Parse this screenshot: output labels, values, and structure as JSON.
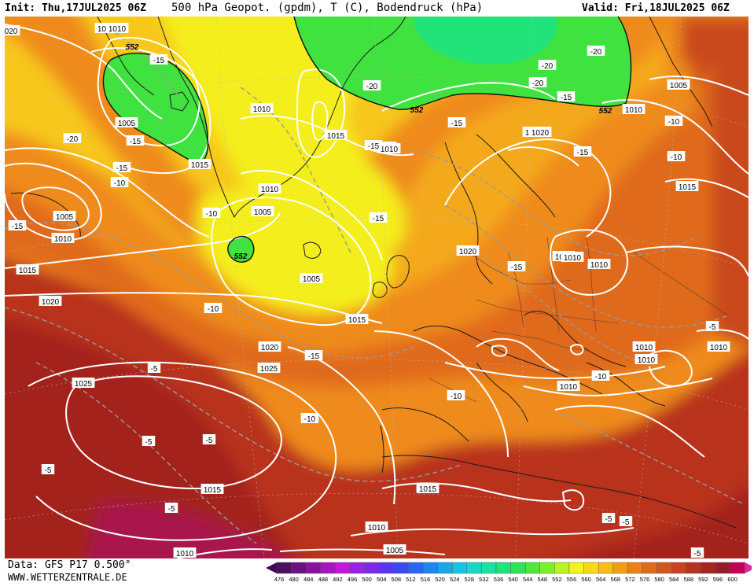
{
  "header": {
    "init": "Init: Thu,17JUL2025 06Z",
    "title": "500 hPa Geopot. (gpdm), T (C), Bodendruck (hPa)",
    "valid": "Valid: Fri,18JUL2025 06Z"
  },
  "footer": {
    "data": "Data: GFS P17 0.500°",
    "site": "WWW.WETTERZENTRALE.DE"
  },
  "legend": {
    "values": [
      "476",
      "480",
      "484",
      "488",
      "492",
      "496",
      "500",
      "504",
      "508",
      "512",
      "516",
      "520",
      "524",
      "528",
      "532",
      "536",
      "540",
      "544",
      "548",
      "552",
      "556",
      "560",
      "564",
      "568",
      "572",
      "576",
      "580",
      "584",
      "588",
      "592",
      "596",
      "600"
    ],
    "colors": [
      "#4b0f5e",
      "#6a1380",
      "#8a11a0",
      "#a914c2",
      "#c218d8",
      "#9b22e0",
      "#7a2ae6",
      "#5a35ea",
      "#3a4aee",
      "#2a66f0",
      "#1f86ee",
      "#1aa6ea",
      "#18c3e2",
      "#19d7c6",
      "#1de0a0",
      "#22e27a",
      "#2fe355",
      "#4ee83a",
      "#7bef2a",
      "#b7f421",
      "#f2f31c",
      "#f8d91a",
      "#f7bb1a",
      "#f29d19",
      "#ec8119",
      "#e06a1c",
      "#d3561f",
      "#c6441f",
      "#b6331e",
      "#a52620",
      "#951c2a",
      "#c2005c"
    ],
    "arrow_left": "#3e0a52",
    "arrow_right": "#d72c99"
  },
  "map": {
    "colors": {
      "deep_red": "#a3211f",
      "red": "#b8321e",
      "orange_red": "#c9481f",
      "orange": "#e06a1c",
      "light_orange": "#ef8b1a",
      "amber": "#f4a91a",
      "gold": "#f7c71a",
      "yellow": "#f4ee1c",
      "green": "#3fe23f",
      "teal_green": "#22e27a",
      "magenta": "#a8124c"
    },
    "pressure_labels": [
      "1010",
      "1005",
      "1010",
      "1015",
      "1015",
      "1010",
      "1010",
      "1005",
      "1005",
      "1010",
      "1015",
      "1020",
      "1010",
      "1005",
      "1015",
      "1020",
      "1015",
      "1010",
      "1010",
      "1020",
      "1025",
      "1015",
      "1025",
      "1010",
      "1010",
      "1010",
      "1010",
      "1015",
      "1015",
      "1010",
      "1020",
      "1005",
      "1005",
      "1010",
      "1010",
      "1020"
    ],
    "temp_labels": [
      "-15",
      "-15",
      "-20",
      "-15",
      "-10",
      "-20",
      "-15",
      "-15",
      "-20",
      "-20",
      "-20",
      "-15",
      "-15",
      "-10",
      "-10",
      "-10",
      "-15",
      "-15",
      "-10",
      "-5",
      "-5",
      "-5",
      "-10",
      "-5",
      "-5",
      "-10",
      "-5",
      "-10",
      "-5",
      "-5",
      "-5",
      "-15",
      "-15"
    ],
    "geopot_labels": [
      "552",
      "552",
      "552",
      "552"
    ],
    "edge_labels": [
      "020",
      "1010"
    ]
  }
}
